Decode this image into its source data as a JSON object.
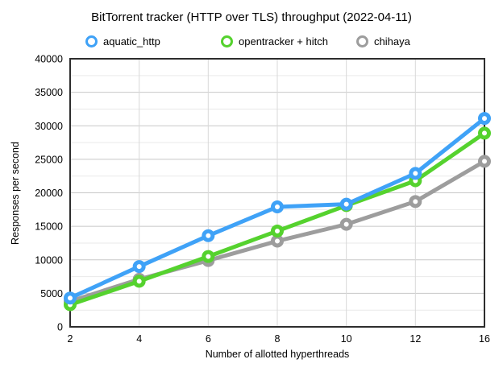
{
  "title": "BitTorrent tracker (HTTP over TLS) throughput (2022-04-11)",
  "chart_data": {
    "type": "line",
    "title": "BitTorrent tracker (HTTP over TLS) throughput (2022-04-11)",
    "xlabel": "Number of allotted hyperthreads",
    "ylabel": "Responses per second",
    "categories": [
      2,
      4,
      6,
      8,
      10,
      12,
      16
    ],
    "x_tick_labels": [
      "2",
      "4",
      "6",
      "8",
      "10",
      "12",
      "16"
    ],
    "y_tick_labels": [
      "0",
      "5000",
      "10000",
      "15000",
      "20000",
      "25000",
      "30000",
      "35000",
      "40000"
    ],
    "ylim": [
      0,
      40000
    ],
    "y_major_step": 5000,
    "y_minor_step": 2500,
    "grid": true,
    "legend_position": "top",
    "series": [
      {
        "name": "aquatic_http",
        "color": "#3fa2f7",
        "values": [
          4300,
          9000,
          13600,
          17900,
          18300,
          22900,
          31100
        ]
      },
      {
        "name": "opentracker + hitch",
        "color": "#55d22e",
        "values": [
          3300,
          6800,
          10500,
          14300,
          18100,
          21800,
          28900
        ]
      },
      {
        "name": "chihaya",
        "color": "#9d9d9d",
        "values": [
          3800,
          7100,
          9900,
          12800,
          15300,
          18700,
          24700
        ]
      }
    ],
    "colors": {
      "plot_border": "#2d2d2d",
      "major_grid": "#c8c8c8",
      "minor_grid": "#e9e9e9",
      "vertical_grid": "#d9d9d9",
      "text": "#000000"
    }
  }
}
